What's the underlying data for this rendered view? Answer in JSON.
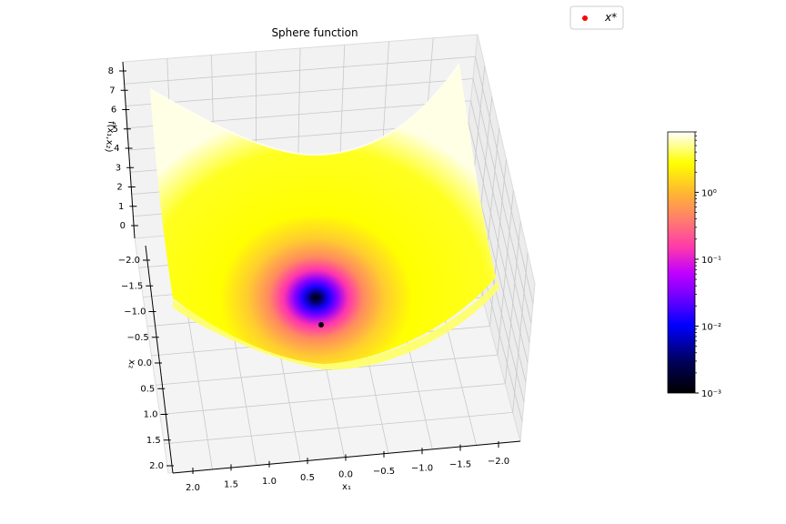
{
  "chart_data": {
    "type": "surface",
    "title": "Sphere function",
    "function": "f(x1,x2) = x1^2 + x2^2",
    "xlabel": "x₁",
    "ylabel": "x₂",
    "zlabel": "f(x₁,x₂)",
    "xlim": [
      -2.0,
      2.0
    ],
    "ylim": [
      -2.0,
      2.0
    ],
    "zlim": [
      0,
      8
    ],
    "x_ticks": [
      "2.0",
      "1.5",
      "1.0",
      "0.5",
      "0.0",
      "−0.5",
      "−1.0",
      "−1.5",
      "−2.0"
    ],
    "y_ticks": [
      "−2.0",
      "−1.5",
      "−1.0",
      "−0.5",
      "0.0",
      "0.5",
      "1.0",
      "1.5",
      "2.0"
    ],
    "z_ticks": [
      "0",
      "1",
      "2",
      "3",
      "4",
      "5",
      "6",
      "7",
      "8"
    ],
    "minimum": {
      "label": "x*",
      "x1": 0.0,
      "x2": 0.0,
      "f": 0.0,
      "color": "#ff0000"
    },
    "legend": {
      "position": "top-right",
      "entries": [
        "x*"
      ]
    },
    "colorbar": {
      "scale": "log",
      "colormap": "gnuplot2",
      "range": [
        0.001,
        8
      ],
      "tick_labels": [
        "10⁻³",
        "10⁻²",
        "10⁻¹",
        "10⁰"
      ]
    },
    "grid": true
  }
}
